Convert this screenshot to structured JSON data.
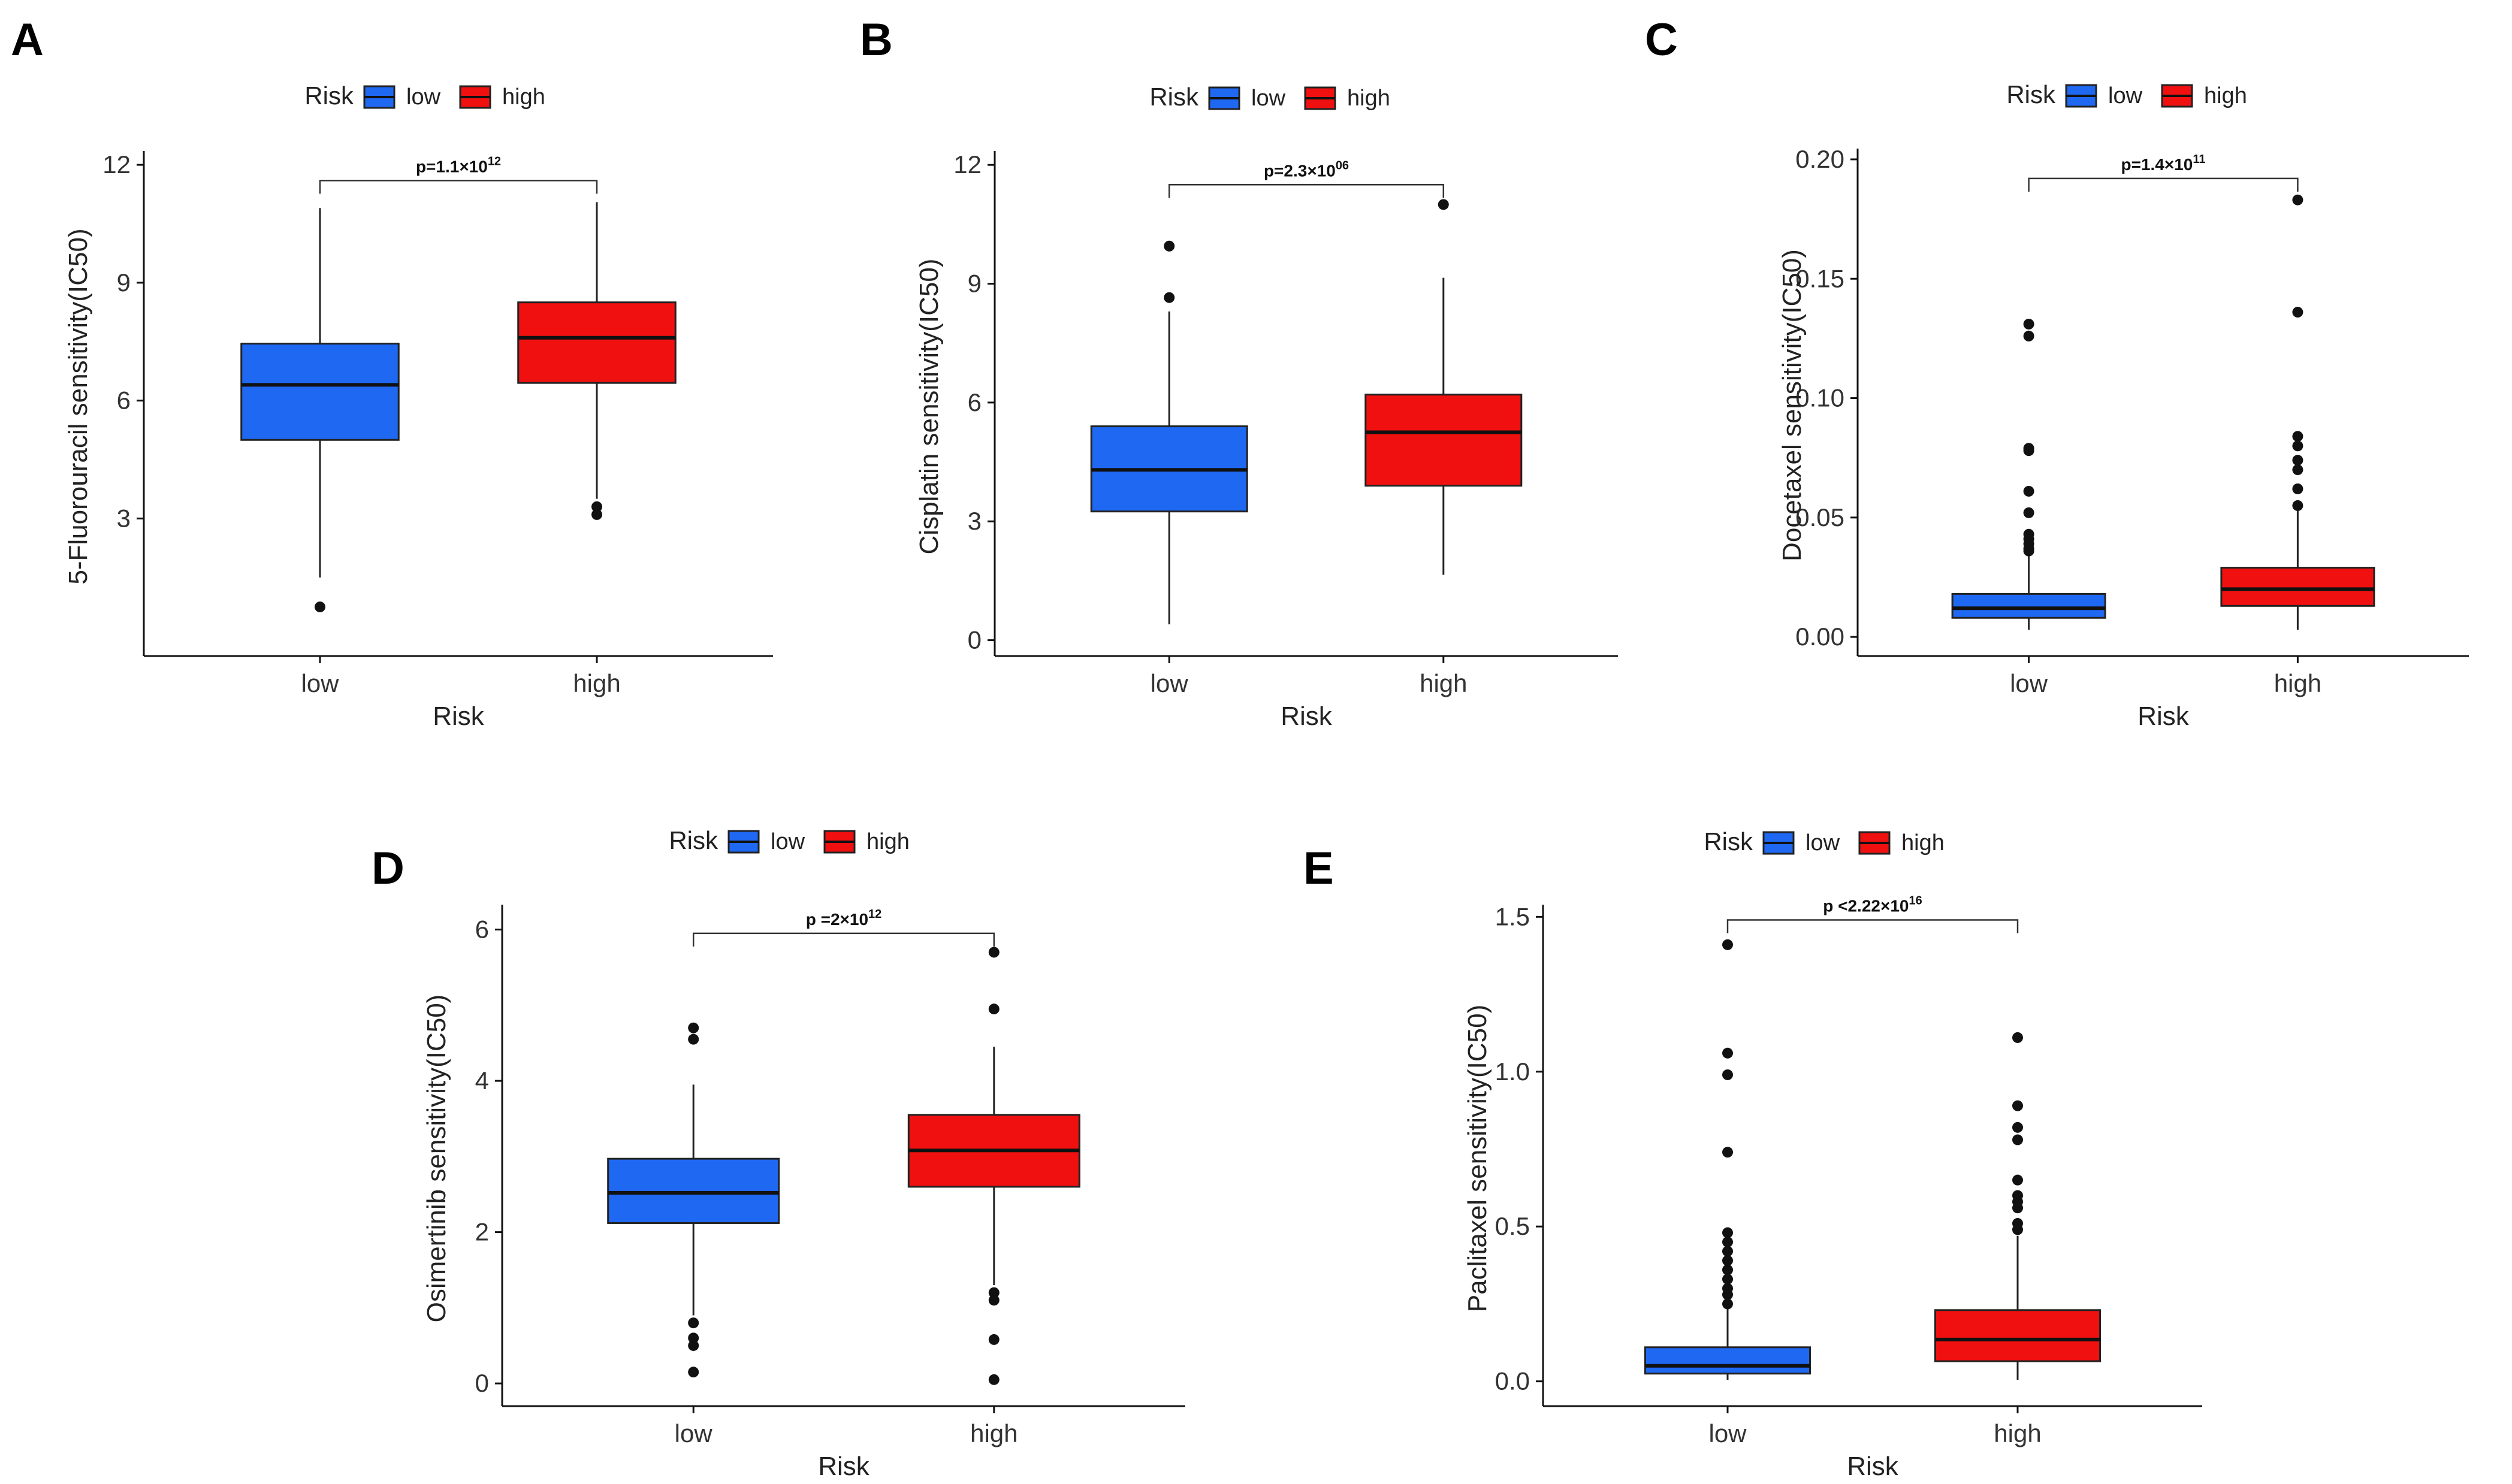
{
  "figure": {
    "colors": {
      "low": "#1f68f2",
      "high": "#f01010"
    }
  },
  "chart_data": [
    {
      "panel": "A",
      "type": "box",
      "xlabel": "Risk",
      "ylabel": "5-Fluorouracil sensitivity(IC50)",
      "ylim": [
        -0.5,
        12.2
      ],
      "yticks": [
        3,
        6,
        9,
        12
      ],
      "categories": [
        "low",
        "high"
      ],
      "legend": {
        "title": "Risk",
        "entries": [
          "low",
          "high"
        ]
      },
      "pvalue": "p=1.1×10",
      "pvalue_exp": "12",
      "bracket_y": 11.6,
      "series": [
        {
          "name": "low",
          "q1": 5.0,
          "median": 6.4,
          "q3": 7.45,
          "whisker_low": 1.5,
          "whisker_high": 10.9,
          "outliers": [
            0.75
          ]
        },
        {
          "name": "high",
          "q1": 6.45,
          "median": 7.6,
          "q3": 8.5,
          "whisker_low": 3.5,
          "whisker_high": 11.05,
          "outliers": [
            3.3,
            3.1
          ]
        }
      ]
    },
    {
      "panel": "B",
      "type": "box",
      "xlabel": "Risk",
      "ylabel": "Cisplatin sensitivity(IC50)",
      "ylim": [
        -0.4,
        12.2
      ],
      "yticks": [
        0,
        3,
        6,
        9,
        12
      ],
      "categories": [
        "low",
        "high"
      ],
      "legend": {
        "title": "Risk",
        "entries": [
          "low",
          "high"
        ]
      },
      "pvalue": "p=2.3×10",
      "pvalue_exp": "06",
      "bracket_y": 11.5,
      "series": [
        {
          "name": "low",
          "q1": 3.25,
          "median": 4.3,
          "q3": 5.4,
          "whisker_low": 0.4,
          "whisker_high": 8.3,
          "outliers": [
            8.65,
            9.95
          ]
        },
        {
          "name": "high",
          "q1": 3.9,
          "median": 5.25,
          "q3": 6.2,
          "whisker_low": 1.65,
          "whisker_high": 9.15,
          "outliers": [
            11.0
          ]
        }
      ]
    },
    {
      "panel": "C",
      "type": "box",
      "xlabel": "Risk",
      "ylabel": "Docetaxel sensitivity(IC50)",
      "ylim": [
        -0.008,
        0.202
      ],
      "yticks": [
        0.0,
        0.05,
        0.1,
        0.15,
        0.2
      ],
      "ytick_labels": [
        "0.00",
        "0.05",
        "0.10",
        "0.15",
        "0.20"
      ],
      "categories": [
        "low",
        "high"
      ],
      "legend": {
        "title": "Risk",
        "entries": [
          "low",
          "high"
        ]
      },
      "pvalue": "p=1.4×10",
      "pvalue_exp": "11",
      "bracket_y": 0.192,
      "series": [
        {
          "name": "low",
          "q1": 0.008,
          "median": 0.012,
          "q3": 0.018,
          "whisker_low": 0.003,
          "whisker_high": 0.034,
          "outliers": [
            0.036,
            0.037,
            0.039,
            0.041,
            0.043,
            0.052,
            0.061,
            0.078,
            0.079,
            0.126,
            0.131
          ]
        },
        {
          "name": "high",
          "q1": 0.013,
          "median": 0.02,
          "q3": 0.029,
          "whisker_low": 0.003,
          "whisker_high": 0.054,
          "outliers": [
            0.055,
            0.062,
            0.07,
            0.074,
            0.08,
            0.084,
            0.136,
            0.183
          ]
        }
      ]
    },
    {
      "panel": "D",
      "type": "box",
      "xlabel": "Risk",
      "ylabel": "Osimertinib sensitivity(IC50)",
      "ylim": [
        -0.3,
        6.25
      ],
      "yticks": [
        0,
        2,
        4,
        6
      ],
      "categories": [
        "low",
        "high"
      ],
      "legend": {
        "title": "Risk",
        "entries": [
          "low",
          "high"
        ]
      },
      "pvalue": "p =2×10",
      "pvalue_exp": "12",
      "bracket_y": 5.95,
      "series": [
        {
          "name": "low",
          "q1": 2.12,
          "median": 2.52,
          "q3": 2.97,
          "whisker_low": 0.9,
          "whisker_high": 3.95,
          "outliers": [
            0.15,
            0.5,
            0.6,
            0.8,
            4.55,
            4.7
          ]
        },
        {
          "name": "high",
          "q1": 2.6,
          "median": 3.08,
          "q3": 3.55,
          "whisker_low": 1.3,
          "whisker_high": 4.45,
          "outliers": [
            0.05,
            0.58,
            1.1,
            1.2,
            4.95,
            5.7
          ]
        }
      ]
    },
    {
      "panel": "E",
      "type": "box",
      "xlabel": "Risk",
      "ylabel": "Paclitaxel sensitivity(IC50)",
      "ylim": [
        -0.08,
        1.52
      ],
      "yticks": [
        0.0,
        0.5,
        1.0,
        1.5
      ],
      "ytick_labels": [
        "0.0",
        "0.5",
        "1.0",
        "1.5"
      ],
      "categories": [
        "low",
        "high"
      ],
      "legend": {
        "title": "Risk",
        "entries": [
          "low",
          "high"
        ]
      },
      "pvalue": "p <2.22×10",
      "pvalue_exp": "16",
      "bracket_y": 1.49,
      "series": [
        {
          "name": "low",
          "q1": 0.025,
          "median": 0.05,
          "q3": 0.11,
          "whisker_low": 0.005,
          "whisker_high": 0.24,
          "outliers": [
            0.25,
            0.28,
            0.3,
            0.33,
            0.36,
            0.39,
            0.42,
            0.45,
            0.48,
            0.74,
            0.99,
            1.06,
            1.41
          ]
        },
        {
          "name": "high",
          "q1": 0.065,
          "median": 0.135,
          "q3": 0.23,
          "whisker_low": 0.005,
          "whisker_high": 0.47,
          "outliers": [
            0.49,
            0.51,
            0.56,
            0.58,
            0.6,
            0.65,
            0.78,
            0.82,
            0.89,
            1.11
          ]
        }
      ]
    }
  ]
}
